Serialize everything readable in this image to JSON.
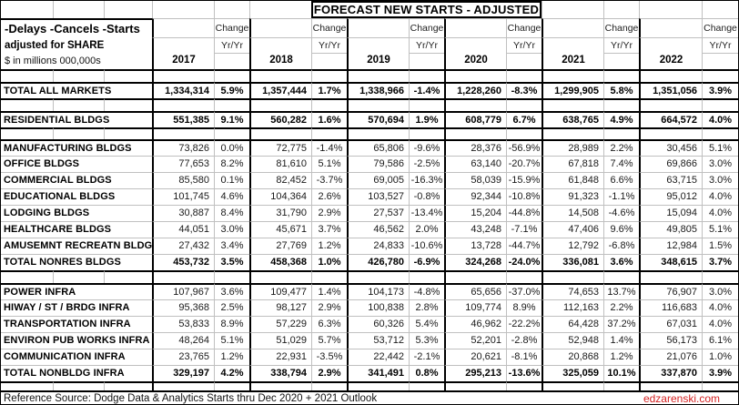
{
  "chart_data": {
    "type": "table",
    "title": "FORECAST NEW STARTS - ADJUSTED",
    "years": [
      "2017",
      "2018",
      "2019",
      "2020",
      "2021",
      "2022"
    ],
    "sections": [
      {
        "rows": [
          {
            "label": "TOTAL ALL MARKETS",
            "bold": true,
            "values": [
              "1,334,314",
              "1,357,444",
              "1,338,966",
              "1,228,260",
              "1,299,905",
              "1,351,056"
            ],
            "changes": [
              "5.9%",
              "1.7%",
              "-1.4%",
              "-8.3%",
              "5.8%",
              "3.9%"
            ]
          }
        ]
      },
      {
        "rows": [
          {
            "label": "RESIDENTIAL BLDGS",
            "bold": true,
            "values": [
              "551,385",
              "560,282",
              "570,694",
              "608,779",
              "638,765",
              "664,572"
            ],
            "changes": [
              "9.1%",
              "1.6%",
              "1.9%",
              "6.7%",
              "4.9%",
              "4.0%"
            ]
          }
        ]
      },
      {
        "rows": [
          {
            "label": "MANUFACTURING BLDGS",
            "bold": false,
            "values": [
              "73,826",
              "72,775",
              "65,806",
              "28,376",
              "28,989",
              "30,456"
            ],
            "changes": [
              "0.0%",
              "-1.4%",
              "-9.6%",
              "-56.9%",
              "2.2%",
              "5.1%"
            ]
          },
          {
            "label": "OFFICE BLDGS",
            "bold": false,
            "values": [
              "77,653",
              "81,610",
              "79,586",
              "63,140",
              "67,818",
              "69,866"
            ],
            "changes": [
              "8.2%",
              "5.1%",
              "-2.5%",
              "-20.7%",
              "7.4%",
              "3.0%"
            ]
          },
          {
            "label": "COMMERCIAL BLDGS",
            "bold": false,
            "values": [
              "85,580",
              "82,452",
              "69,005",
              "58,039",
              "61,848",
              "63,715"
            ],
            "changes": [
              "0.1%",
              "-3.7%",
              "-16.3%",
              "-15.9%",
              "6.6%",
              "3.0%"
            ]
          },
          {
            "label": "EDUCATIONAL BLDGS",
            "bold": false,
            "values": [
              "101,745",
              "104,364",
              "103,527",
              "92,344",
              "91,323",
              "95,012"
            ],
            "changes": [
              "4.6%",
              "2.6%",
              "-0.8%",
              "-10.8%",
              "-1.1%",
              "4.0%"
            ]
          },
          {
            "label": "LODGING BLDGS",
            "bold": false,
            "values": [
              "30,887",
              "31,790",
              "27,537",
              "15,204",
              "14,508",
              "15,094"
            ],
            "changes": [
              "8.4%",
              "2.9%",
              "-13.4%",
              "-44.8%",
              "-4.6%",
              "4.0%"
            ]
          },
          {
            "label": "HEALTHCARE BLDGS",
            "bold": false,
            "values": [
              "44,051",
              "45,671",
              "46,562",
              "43,248",
              "47,406",
              "49,805"
            ],
            "changes": [
              "3.0%",
              "3.7%",
              "2.0%",
              "-7.1%",
              "9.6%",
              "5.1%"
            ]
          },
          {
            "label": "AMUSEMNT RECREATN BLDG",
            "bold": false,
            "values": [
              "27,432",
              "27,769",
              "24,833",
              "13,728",
              "12,792",
              "12,984"
            ],
            "changes": [
              "3.4%",
              "1.2%",
              "-10.6%",
              "-44.7%",
              "-6.8%",
              "1.5%"
            ]
          },
          {
            "label": "TOTAL NONRES BLDGS",
            "bold": true,
            "values": [
              "453,732",
              "458,368",
              "426,780",
              "324,268",
              "336,081",
              "348,615"
            ],
            "changes": [
              "3.5%",
              "1.0%",
              "-6.9%",
              "-24.0%",
              "3.6%",
              "3.7%"
            ]
          }
        ]
      },
      {
        "rows": [
          {
            "label": "POWER INFRA",
            "bold": false,
            "values": [
              "107,967",
              "109,477",
              "104,173",
              "65,656",
              "74,653",
              "76,907"
            ],
            "changes": [
              "3.6%",
              "1.4%",
              "-4.8%",
              "-37.0%",
              "13.7%",
              "3.0%"
            ]
          },
          {
            "label": "HIWAY / ST / BRDG INFRA",
            "bold": false,
            "values": [
              "95,368",
              "98,127",
              "100,838",
              "109,774",
              "112,163",
              "116,683"
            ],
            "changes": [
              "2.5%",
              "2.9%",
              "2.8%",
              "8.9%",
              "2.2%",
              "4.0%"
            ]
          },
          {
            "label": "TRANSPORTATION INFRA",
            "bold": false,
            "values": [
              "53,833",
              "57,229",
              "60,326",
              "46,962",
              "64,428",
              "67,031"
            ],
            "changes": [
              "8.9%",
              "6.3%",
              "5.4%",
              "-22.2%",
              "37.2%",
              "4.0%"
            ]
          },
          {
            "label": "ENVIRON PUB WORKS INFRA",
            "bold": false,
            "values": [
              "48,264",
              "51,029",
              "53,712",
              "52,201",
              "52,948",
              "56,173"
            ],
            "changes": [
              "5.1%",
              "5.7%",
              "5.3%",
              "-2.8%",
              "1.4%",
              "6.1%"
            ]
          },
          {
            "label": "COMMUNICATION INFRA",
            "bold": false,
            "values": [
              "23,765",
              "22,931",
              "22,442",
              "20,621",
              "20,868",
              "21,076"
            ],
            "changes": [
              "1.2%",
              "-3.5%",
              "-2.1%",
              "-8.1%",
              "1.2%",
              "1.0%"
            ]
          },
          {
            "label": "TOTAL NONBLDG INFRA",
            "bold": true,
            "values": [
              "329,197",
              "338,794",
              "341,491",
              "295,213",
              "325,059",
              "337,870"
            ],
            "changes": [
              "4.2%",
              "2.9%",
              "0.8%",
              "-13.6%",
              "10.1%",
              "3.9%"
            ]
          }
        ]
      }
    ]
  },
  "header": {
    "line1": "-Delays -Cancels -Starts",
    "line2": "adjusted for SHARE",
    "line3": "$ in millions 000,000s",
    "change_label": "Change",
    "yryr_label": "Yr/Yr"
  },
  "footer": {
    "source": "Reference Source: Dodge Data & Analytics Starts thru Dec 2020 + 2021 Outlook",
    "credit": "edzarenski.com"
  },
  "colors": {
    "credit_red": "#d42222",
    "grid_line": "#c0c0c0",
    "border_black": "#000000"
  }
}
